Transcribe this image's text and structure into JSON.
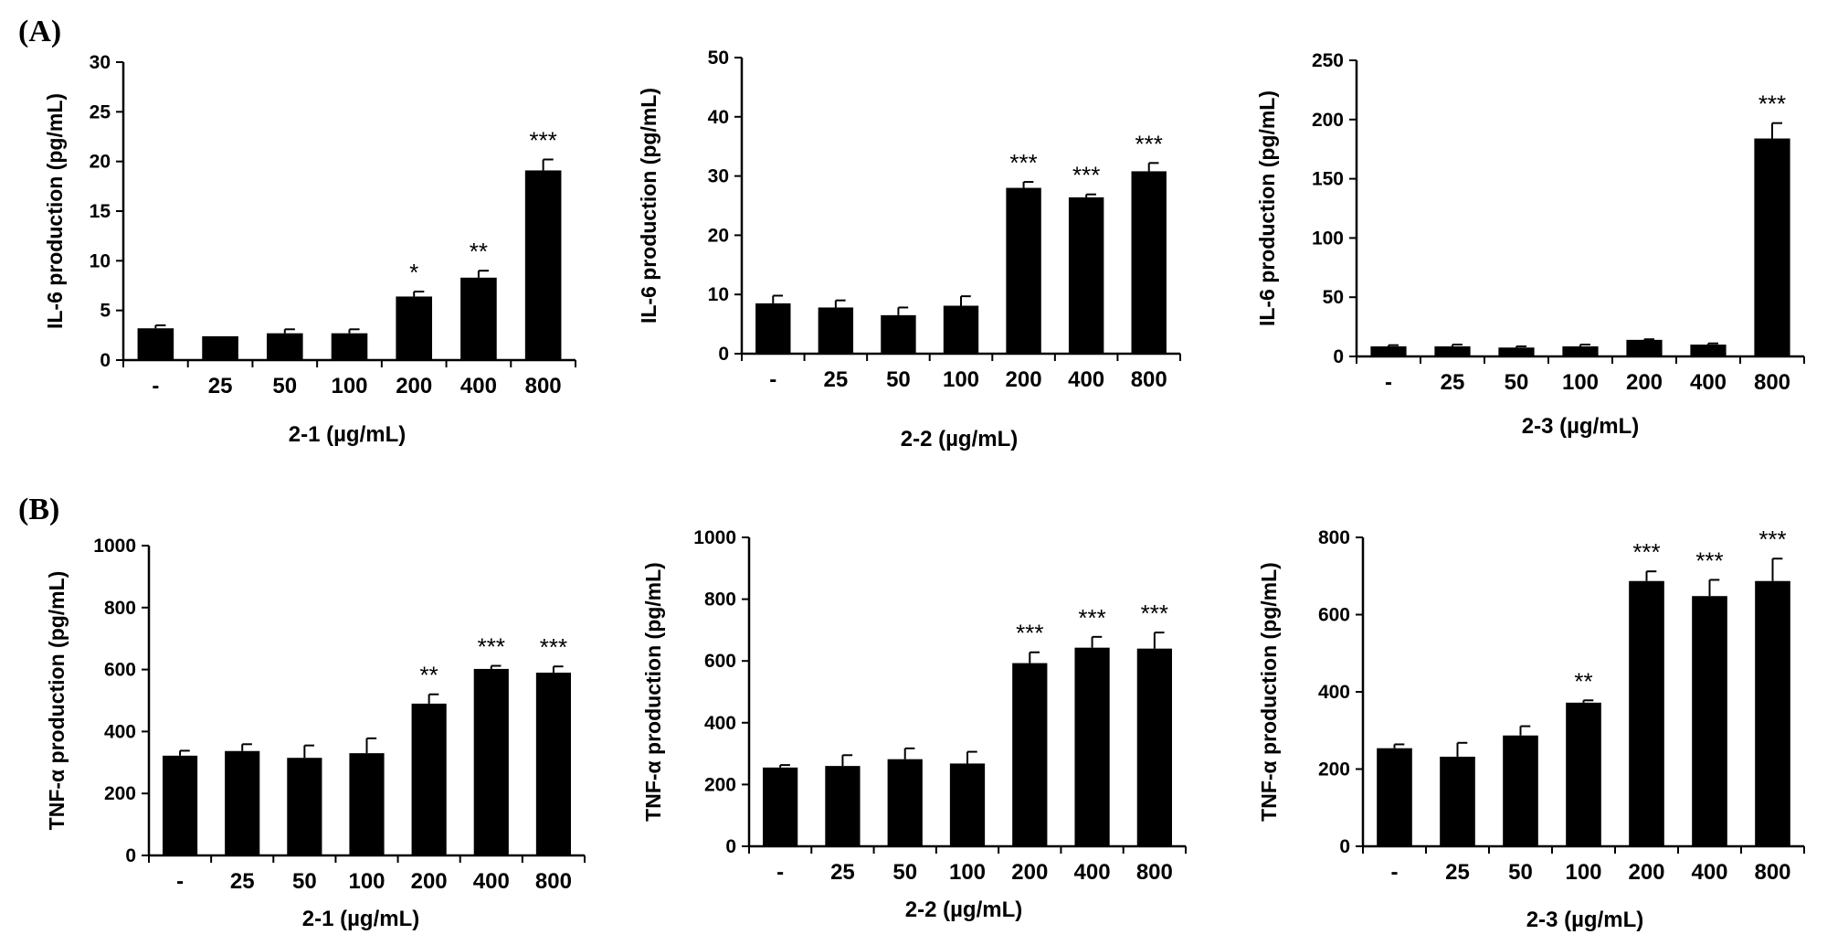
{
  "panels": [
    {
      "label": "(A)"
    },
    {
      "label": "(B)"
    }
  ],
  "chart_data": [
    {
      "type": "bar",
      "panel": "(A)",
      "ylabel": "IL-6 production (pg/mL)",
      "xlabel": "2-1  (µg/mL)",
      "categories": [
        "-",
        "25",
        "50",
        "100",
        "200",
        "400",
        "800"
      ],
      "values": [
        3.2,
        2.4,
        2.7,
        2.7,
        6.4,
        8.3,
        19.1
      ],
      "errors": [
        0.3,
        0.0,
        0.4,
        0.4,
        0.5,
        0.7,
        1.1
      ],
      "significance": [
        "",
        "",
        "",
        "",
        "*",
        "**",
        "***"
      ],
      "ylim": [
        0,
        30
      ],
      "yticks": [
        0,
        5,
        10,
        15,
        20,
        25,
        30
      ],
      "bar_color": "#000000"
    },
    {
      "type": "bar",
      "panel": "(A)",
      "ylabel": "IL-6 production (pg/mL)",
      "xlabel": "2-2  (µg/mL)",
      "categories": [
        "-",
        "25",
        "50",
        "100",
        "200",
        "400",
        "800"
      ],
      "values": [
        8.5,
        7.8,
        6.5,
        8.1,
        28.0,
        26.4,
        30.8
      ],
      "errors": [
        1.3,
        1.2,
        1.3,
        1.6,
        1.0,
        0.5,
        1.4
      ],
      "significance": [
        "",
        "",
        "",
        "",
        "***",
        "***",
        "***"
      ],
      "ylim": [
        0,
        50
      ],
      "yticks": [
        0,
        10,
        20,
        30,
        40,
        50
      ],
      "bar_color": "#000000"
    },
    {
      "type": "bar",
      "panel": "(A)",
      "ylabel": "IL-6 production (pg/mL)",
      "xlabel": "2-3  (µg/mL)",
      "categories": [
        "-",
        "25",
        "50",
        "100",
        "200",
        "400",
        "800"
      ],
      "values": [
        8.5,
        8.5,
        7.5,
        8.5,
        14.0,
        10.0,
        184.0
      ],
      "errors": [
        1.0,
        1.5,
        1.0,
        1.5,
        0.5,
        1.0,
        13.0
      ],
      "significance": [
        "",
        "",
        "",
        "",
        "",
        "",
        "***"
      ],
      "ylim": [
        0,
        250
      ],
      "yticks": [
        0,
        50,
        100,
        150,
        200,
        250
      ],
      "bar_color": "#000000"
    },
    {
      "type": "bar",
      "panel": "(B)",
      "ylabel": "TNF-α production  (pg/mL)",
      "xlabel": "2-1  (µg/mL)",
      "categories": [
        "-",
        "25",
        "50",
        "100",
        "200",
        "400",
        "800"
      ],
      "values": [
        322,
        337,
        315,
        330,
        490,
        602,
        590
      ],
      "errors": [
        16,
        22,
        40,
        48,
        30,
        10,
        20
      ],
      "significance": [
        "",
        "",
        "",
        "",
        "**",
        "***",
        "***"
      ],
      "ylim": [
        0,
        1000
      ],
      "yticks": [
        0,
        200,
        400,
        600,
        800,
        1000
      ],
      "bar_color": "#000000"
    },
    {
      "type": "bar",
      "panel": "(B)",
      "ylabel": "TNF-α production (pg/mL)",
      "xlabel": "2-2   (µg/mL)",
      "categories": [
        "-",
        "25",
        "50",
        "100",
        "200",
        "400",
        "800"
      ],
      "values": [
        255,
        260,
        282,
        268,
        593,
        643,
        640
      ],
      "errors": [
        8,
        35,
        35,
        38,
        35,
        35,
        52
      ],
      "significance": [
        "",
        "",
        "",
        "",
        "***",
        "***",
        "***"
      ],
      "ylim": [
        0,
        1000
      ],
      "yticks": [
        0,
        200,
        400,
        600,
        800,
        1000
      ],
      "bar_color": "#000000"
    },
    {
      "type": "bar",
      "panel": "(B)",
      "ylabel": "TNF-α production (pg/mL)",
      "xlabel": "2-3  (µg/mL)",
      "categories": [
        "-",
        "25",
        "50",
        "100",
        "200",
        "400",
        "800"
      ],
      "values": [
        254,
        232,
        287,
        372,
        687,
        648,
        687
      ],
      "errors": [
        10,
        36,
        24,
        6,
        25,
        42,
        58
      ],
      "significance": [
        "",
        "",
        "",
        "**",
        "***",
        "***",
        "***"
      ],
      "ylim": [
        0,
        800
      ],
      "yticks": [
        0,
        200,
        400,
        600,
        800
      ],
      "bar_color": "#000000"
    }
  ]
}
